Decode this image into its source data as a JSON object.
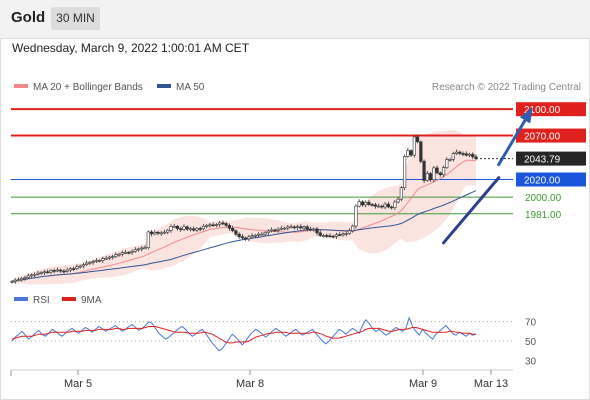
{
  "header": {
    "symbol": "Gold",
    "timeframe": "30 MIN"
  },
  "datetime": "Wednesday, March 9, 2022 1:00:01 AM CET",
  "chart_data": {
    "type": "candlestick",
    "source": "Research © 2022 Trading Central",
    "legend": [
      {
        "label": "MA 20 + Bollinger Bands",
        "color": "#f08a8a"
      },
      {
        "label": "MA 50",
        "color": "#2f5597"
      }
    ],
    "x_labels": [
      "Mar 5",
      "Mar 8",
      "Mar 9",
      "Mar 13"
    ],
    "price_range": [
      1900,
      2115
    ],
    "current_price": {
      "value": "2043.79",
      "price": 2043.79
    },
    "levels": [
      {
        "label": "2100.00",
        "price": 2100,
        "kind": "resistance",
        "color": "#e0201c"
      },
      {
        "label": "2070.00",
        "price": 2070,
        "kind": "resistance",
        "color": "#e0201c"
      },
      {
        "label": "2020.00",
        "price": 2020,
        "kind": "pivot",
        "color": "#1a56db"
      },
      {
        "label": "2000.00",
        "price": 2000,
        "kind": "support",
        "color": "#3f9a32"
      },
      {
        "label": "1981.00",
        "price": 1981,
        "kind": "support",
        "color": "#3f9a32"
      }
    ],
    "candles": [
      1904.1,
      1905.5,
      1906.0,
      1907.6,
      1908.5,
      1910.4,
      1911.5,
      1912.2,
      1913.4,
      1914.2,
      1915.0,
      1914.6,
      1916.6,
      1916.1,
      1917.0,
      1915.9,
      1915.6,
      1917.0,
      1918.6,
      1918.5,
      1920.7,
      1921.6,
      1923.1,
      1925.0,
      1925.8,
      1926.7,
      1927.9,
      1927.9,
      1930.0,
      1930.5,
      1931.8,
      1932.3,
      1934.4,
      1935.1,
      1937.0,
      1937.1,
      1937.0,
      1938.3,
      1940.3,
      1941.0,
      1942.1,
      1942.5,
      1960.4,
      1958.1,
      1960.0,
      1958.8,
      1959.3,
      1960.1,
      1962.3,
      1966.7,
      1966.8,
      1964.1,
      1963.2,
      1966.2,
      1963.6,
      1964.0,
      1962.3,
      1964.3,
      1963.9,
      1966.8,
      1967.8,
      1968.5,
      1967.9,
      1968.8,
      1970.6,
      1969.9,
      1967.8,
      1964.5,
      1961.7,
      1957.8,
      1955.0,
      1953.5,
      1952.5,
      1954.8,
      1956.2,
      1956.6,
      1957.8,
      1957.8,
      1959.4,
      1961.4,
      1962.6,
      1962.2,
      1963.5,
      1964.6,
      1964.7,
      1966.1,
      1966.2,
      1965.4,
      1966.4,
      1964.8,
      1966.2,
      1963.7,
      1962.8,
      1963.8,
      1959.3,
      1956.3,
      1956.4,
      1956.0,
      1955.6,
      1955.3,
      1957.3,
      1957.1,
      1958.2,
      1958.7,
      1961.7,
      1967.1,
      1989.7,
      1994.7,
      1991.1,
      1994.1,
      1991.6,
      1991.3,
      1989.6,
      1989.8,
      1988.8,
      1992.0,
      1988.8,
      1988.0,
      1994.4,
      1997.6,
      2010.7,
      2046.2,
      2052.9,
      2047.7,
      2068.4,
      2062.8,
      2040.7,
      2018.9,
      2026.8,
      2019.6,
      2033.2,
      2027.5,
      2025.4,
      2033.6,
      2042.6,
      2043.0,
      2049.4,
      2051.2,
      2049.6,
      2049.3,
      2047.6,
      2048.8,
      2045.8,
      2043.8
    ],
    "trendlines": [
      {
        "from": [
          133,
          1948
        ],
        "to": [
          150,
          2022
        ],
        "color": "#2f3f8f",
        "label": "support uptrend"
      },
      {
        "from": [
          150,
          2037
        ],
        "to": [
          160,
          2099
        ],
        "color": "#2f5cb0",
        "label": "projection arrow"
      }
    ],
    "rsi_panel": {
      "legend": [
        {
          "label": "RSI",
          "color": "#4a78d8"
        },
        {
          "label": "9MA",
          "color": "#e0201c"
        }
      ],
      "ticks": [
        70,
        50,
        30
      ],
      "range": [
        20,
        80
      ],
      "rsi": [
        50,
        54,
        57,
        60,
        56,
        52,
        55,
        58,
        61,
        57,
        55,
        58,
        62,
        60,
        57,
        55,
        58,
        61,
        63,
        60,
        58,
        61,
        64,
        62,
        59,
        62,
        65,
        63,
        60,
        62,
        64,
        66,
        63,
        60,
        62,
        65,
        67,
        64,
        61,
        63,
        66,
        70,
        68,
        63,
        58,
        55,
        52,
        54,
        57,
        60,
        63,
        65,
        62,
        58,
        55,
        57,
        60,
        62,
        58,
        53,
        48,
        44,
        40,
        42,
        47,
        52,
        57,
        54,
        50,
        46,
        50,
        55,
        59,
        62,
        60,
        57,
        54,
        57,
        60,
        63,
        61,
        58,
        55,
        57,
        60,
        62,
        59,
        56,
        58,
        60,
        62,
        58,
        54,
        50,
        47,
        50,
        54,
        58,
        62,
        60,
        57,
        60,
        63,
        61,
        58,
        66,
        72,
        68,
        63,
        60,
        62,
        59,
        56,
        58,
        61,
        64,
        62,
        60,
        63,
        74,
        65,
        60,
        56,
        62,
        58,
        55,
        52,
        57,
        60,
        63,
        66,
        62,
        58,
        56,
        59,
        57,
        55,
        58,
        56,
        57
      ],
      "ma9": [
        52,
        53,
        54,
        55,
        55,
        55,
        55,
        56,
        57,
        57,
        57,
        58,
        59,
        59,
        59,
        59,
        59,
        59,
        60,
        60,
        60,
        60,
        61,
        61,
        61,
        61,
        62,
        62,
        62,
        62,
        62,
        63,
        63,
        62,
        62,
        63,
        63,
        63,
        63,
        63,
        64,
        65,
        65,
        65,
        64,
        63,
        62,
        61,
        60,
        59,
        59,
        59,
        59,
        58,
        58,
        58,
        58,
        59,
        59,
        58,
        57,
        55,
        53,
        51,
        49,
        48,
        48,
        49,
        49,
        49,
        49,
        50,
        52,
        54,
        55,
        56,
        57,
        58,
        58,
        59,
        59,
        59,
        59,
        58,
        58,
        58,
        58,
        58,
        58,
        58,
        59,
        59,
        58,
        57,
        55,
        54,
        53,
        53,
        53,
        54,
        55,
        56,
        57,
        58,
        59,
        60,
        62,
        63,
        63,
        63,
        63,
        62,
        61,
        60,
        60,
        61,
        62,
        62,
        62,
        63,
        64,
        64,
        63,
        62,
        61,
        60,
        59,
        59,
        59,
        59,
        59,
        60,
        60,
        59,
        59,
        58,
        58,
        58,
        57,
        57
      ]
    }
  }
}
